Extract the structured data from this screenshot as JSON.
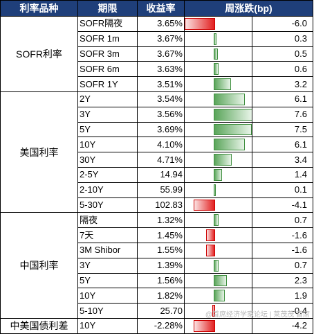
{
  "header": {
    "col_category": "利率品种",
    "col_term": "期限",
    "col_yield": "收益率",
    "col_change": "周涨跌(bp)"
  },
  "groups": [
    {
      "name": "SOFR利率",
      "rows": [
        {
          "term": "SOFR隔夜",
          "yield": "3.65%",
          "change": "-6.0",
          "change_value": -6.0
        },
        {
          "term": "SOFR 1m",
          "yield": "3.67%",
          "change": "0.3",
          "change_value": 0.3
        },
        {
          "term": "SOFR 3m",
          "yield": "3.67%",
          "change": "0.5",
          "change_value": 0.5
        },
        {
          "term": "SOFR 6m",
          "yield": "3.63%",
          "change": "0.6",
          "change_value": 0.6
        },
        {
          "term": "SOFR 1Y",
          "yield": "3.51%",
          "change": "3.2",
          "change_value": 3.2
        }
      ]
    },
    {
      "name": "美国利率",
      "rows": [
        {
          "term": "2Y",
          "yield": "3.54%",
          "change": "6.1",
          "change_value": 6.1
        },
        {
          "term": "3Y",
          "yield": "3.56%",
          "change": "7.6",
          "change_value": 7.6
        },
        {
          "term": "5Y",
          "yield": "3.69%",
          "change": "7.5",
          "change_value": 7.5
        },
        {
          "term": "10Y",
          "yield": "4.10%",
          "change": "6.1",
          "change_value": 6.1
        },
        {
          "term": "30Y",
          "yield": "4.71%",
          "change": "3.4",
          "change_value": 3.4
        },
        {
          "term": "2-5Y",
          "yield": "14.94",
          "change": "1.4",
          "change_value": 1.4
        },
        {
          "term": "2-10Y",
          "yield": "55.99",
          "change": "0.1",
          "change_value": 0.1
        },
        {
          "term": "5-30Y",
          "yield": "102.83",
          "change": "-4.1",
          "change_value": -4.1
        }
      ]
    },
    {
      "name": "中国利率",
      "rows": [
        {
          "term": "隔夜",
          "yield": "1.32%",
          "change": "0.7",
          "change_value": 0.7
        },
        {
          "term": "7天",
          "yield": "1.45%",
          "change": "-1.6",
          "change_value": -1.6
        },
        {
          "term": "3M Shibor",
          "yield": "1.55%",
          "change": "-1.6",
          "change_value": -1.6
        },
        {
          "term": "3Y",
          "yield": "1.39%",
          "change": "0.7",
          "change_value": 0.7
        },
        {
          "term": "5Y",
          "yield": "1.56%",
          "change": "2.3",
          "change_value": 2.3
        },
        {
          "term": "10Y",
          "yield": "1.82%",
          "change": "1.9",
          "change_value": 1.9
        },
        {
          "term": "5-10Y",
          "yield": "25.70",
          "change": "-0.4",
          "change_value": -0.4
        }
      ]
    },
    {
      "name": "中美国债利差",
      "rows": [
        {
          "term": "10Y",
          "yield": "-2.28%",
          "change": "-4.2",
          "change_value": -4.2
        }
      ]
    }
  ],
  "bar_scale": {
    "min": -6.0,
    "max": 7.6
  },
  "colors": {
    "header_bg": "#1f3f7a",
    "positive": "#5aa55a",
    "negative": "#e21f1f"
  },
  "watermark": "@首席经济学家论坛 | 莱茂茂 首席"
}
